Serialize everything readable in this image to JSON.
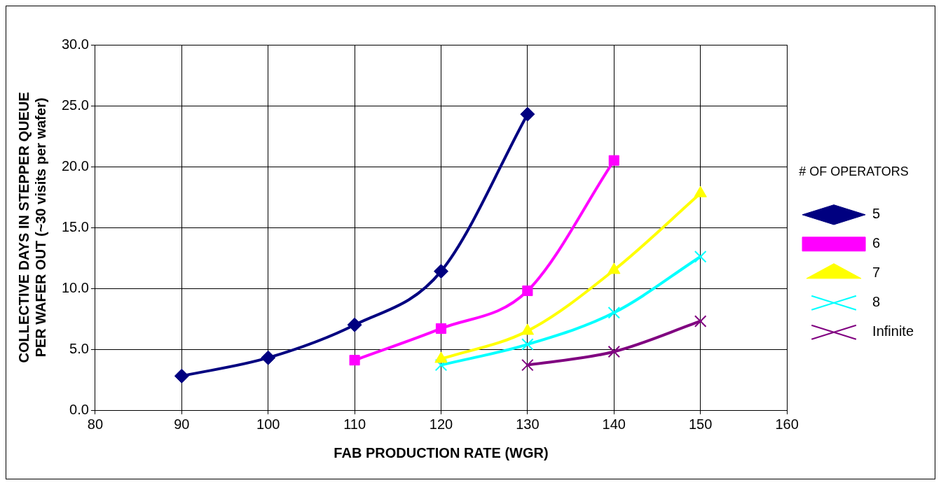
{
  "chart_data": {
    "type": "line",
    "xlabel": "FAB PRODUCTION RATE (WGR)",
    "ylabel": "COLLECTIVE DAYS IN STEPPER QUEUE PER WAFER OUT (~30 visits per wafer)",
    "legend_title": "# OF OPERATORS",
    "xlim": [
      80,
      160
    ],
    "xticks": [
      80,
      90,
      100,
      110,
      120,
      130,
      140,
      150,
      160
    ],
    "ylim": [
      0,
      30
    ],
    "yticks": [
      {
        "value": 0,
        "label": "0.0"
      },
      {
        "value": 5,
        "label": "5.0"
      },
      {
        "value": 10,
        "label": "10.0"
      },
      {
        "value": 15,
        "label": "15.0"
      },
      {
        "value": 20,
        "label": "20.0"
      },
      {
        "value": 25,
        "label": "25.0"
      },
      {
        "value": 30,
        "label": "30.0"
      }
    ],
    "grid": true,
    "legend": "right",
    "line_style": "solid",
    "series": [
      {
        "name": "5",
        "color": "#000080",
        "marker": "diamond",
        "x": [
          90,
          100,
          110,
          120,
          130
        ],
        "values": [
          2.8,
          4.3,
          7.0,
          11.4,
          24.3
        ]
      },
      {
        "name": "6",
        "color": "#ff00ff",
        "marker": "square",
        "x": [
          110,
          120,
          130,
          140
        ],
        "values": [
          4.1,
          6.7,
          9.8,
          20.5
        ]
      },
      {
        "name": "7",
        "color": "#ffff00",
        "marker": "triangle",
        "x": [
          120,
          130,
          140,
          150
        ],
        "values": [
          4.2,
          6.5,
          11.5,
          17.8
        ]
      },
      {
        "name": "8",
        "color": "#00ffff",
        "marker": "cross",
        "x": [
          120,
          130,
          140,
          150
        ],
        "values": [
          3.7,
          5.4,
          8.0,
          12.6
        ]
      },
      {
        "name": "Infinite",
        "color": "#800080",
        "marker": "cross",
        "x": [
          130,
          140,
          150
        ],
        "values": [
          3.7,
          4.8,
          7.3
        ]
      }
    ]
  }
}
